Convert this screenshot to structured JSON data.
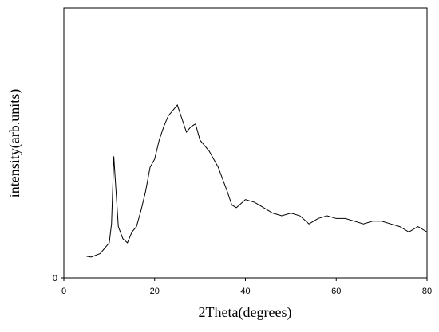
{
  "chart_data": {
    "type": "line",
    "x_label": "2Theta(degrees)",
    "y_label": "intensity(arb.units)",
    "x": [
      5,
      6,
      8,
      10,
      10.5,
      11,
      11.5,
      12,
      13,
      14,
      15,
      16,
      17,
      18,
      19,
      20,
      21,
      22,
      23,
      24,
      25,
      26,
      27,
      28,
      29,
      30,
      32,
      34,
      36,
      37,
      38,
      40,
      42,
      44,
      46,
      48,
      50,
      52,
      54,
      56,
      58,
      60,
      62,
      64,
      66,
      68,
      70,
      72,
      74,
      76,
      78,
      80
    ],
    "series": [
      {
        "color": "#000000",
        "values": [
          8,
          7.7,
          9,
          13,
          20,
          45,
          32,
          19,
          14.5,
          13,
          17,
          19,
          25,
          32,
          41,
          44,
          51,
          56,
          60,
          62,
          64,
          59,
          54,
          56,
          57,
          51,
          47,
          41,
          32,
          27,
          26,
          29,
          28,
          26,
          24,
          23,
          24,
          23,
          20,
          22,
          23,
          22,
          22,
          21,
          20,
          21,
          21,
          20,
          19,
          17,
          19,
          17
        ]
      }
    ],
    "xlim": [
      0,
      80
    ],
    "xticks": [
      0,
      20,
      40,
      60,
      80
    ],
    "ylim": [
      0,
      100
    ],
    "yticks": [
      0
    ]
  }
}
